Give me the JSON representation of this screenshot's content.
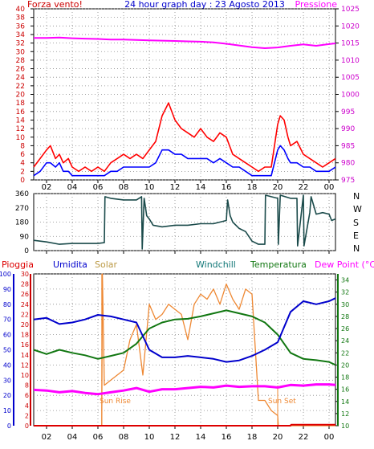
{
  "header": {
    "left_title": "Forza vento!",
    "center_title": "24 hour graph day : 23 Agosto 2013",
    "right_title": "Pressione"
  },
  "time_ticks": [
    "02",
    "04",
    "06",
    "08",
    "10",
    "12",
    "14",
    "16",
    "18",
    "20",
    "22",
    "00"
  ],
  "wind_panel": {
    "left_ticks": [
      "0",
      "2",
      "4",
      "6",
      "8",
      "10",
      "12",
      "14",
      "16",
      "18",
      "20",
      "22",
      "24",
      "26",
      "28",
      "30",
      "32",
      "34",
      "36",
      "38",
      "40"
    ],
    "right_ticks": [
      "975",
      "980",
      "985",
      "990",
      "995",
      "1000",
      "1005",
      "1010",
      "1015",
      "1020",
      "1025"
    ]
  },
  "direction_panel": {
    "left_ticks": [
      "0",
      "90",
      "180",
      "270",
      "360"
    ],
    "compass": [
      "N",
      "W",
      "S",
      "E",
      "N"
    ]
  },
  "bottom_panel": {
    "legend": [
      "Pioggia",
      "Umidita",
      "Solar",
      "Windchill",
      "Temperatura",
      "Dew Point (°C)"
    ],
    "humidity_ticks": [
      "0",
      "10",
      "20",
      "30",
      "40",
      "50",
      "60",
      "70",
      "80",
      "90",
      "100"
    ],
    "rain_ticks": [
      "0",
      "2",
      "4",
      "6",
      "8",
      "10",
      "12",
      "14",
      "16",
      "18",
      "20",
      "22",
      "24",
      "26",
      "28",
      "30"
    ],
    "temp_ticks": [
      "10",
      "12",
      "14",
      "16",
      "18",
      "20",
      "22",
      "24",
      "26",
      "28",
      "30",
      "32",
      "34"
    ],
    "annotations": {
      "sunrise": "Sun Rise",
      "sunset": "Sun Set"
    }
  },
  "colors": {
    "wind_gust": "#ff0000",
    "wind_avg": "#0000ff",
    "pressure": "#ff00ff",
    "direction": "#1a4a4a",
    "humidity": "#0000cc",
    "solar": "#ee8833",
    "temperature": "#117711",
    "dewpoint": "#ff00ff",
    "rain": "#dd0000",
    "hum_axis": "#0000cc",
    "rain_axis": "#cc0000",
    "temp_axis": "#117711"
  },
  "chart_data": [
    {
      "type": "line",
      "x_unit": "hour",
      "xlim": [
        1,
        24.5
      ],
      "series": [
        {
          "name": "gust",
          "axis": "left",
          "x": [
            1,
            1.5,
            2,
            2.3,
            2.7,
            3,
            3.3,
            3.7,
            4,
            4.5,
            5,
            5.5,
            6,
            6.5,
            7,
            7.5,
            8,
            8.5,
            9,
            9.5,
            10,
            10.5,
            11,
            11.5,
            12,
            12.5,
            13,
            13.5,
            14,
            14.5,
            15,
            15.5,
            16,
            16.5,
            17,
            17.5,
            18,
            18.5,
            19,
            19.5,
            20,
            20.2,
            20.5,
            20.8,
            21,
            21.5,
            22,
            22.5,
            23,
            23.5,
            24,
            24.5
          ],
          "values": [
            3,
            5,
            7,
            8,
            5,
            6,
            4,
            5,
            3,
            2,
            3,
            2,
            3,
            2,
            4,
            5,
            6,
            5,
            6,
            5,
            7,
            9,
            15,
            18,
            14,
            12,
            11,
            10,
            12,
            10,
            9,
            11,
            10,
            6,
            5,
            4,
            3,
            2,
            3,
            3,
            13,
            15,
            14,
            10,
            8,
            9,
            6,
            5,
            4,
            3,
            4,
            5
          ]
        },
        {
          "name": "average",
          "axis": "left",
          "x": [
            1,
            1.5,
            2,
            2.3,
            2.7,
            3,
            3.3,
            3.7,
            4,
            4.5,
            5,
            5.5,
            6,
            6.5,
            7,
            7.5,
            8,
            8.5,
            9,
            9.5,
            10,
            10.5,
            11,
            11.5,
            12,
            12.5,
            13,
            13.5,
            14,
            14.5,
            15,
            15.5,
            16,
            16.5,
            17,
            17.5,
            18,
            18.5,
            19,
            19.5,
            20,
            20.2,
            20.5,
            20.8,
            21,
            21.5,
            22,
            22.5,
            23,
            23.5,
            24,
            24.5
          ],
          "values": [
            1,
            2,
            4,
            4,
            3,
            4,
            2,
            2,
            1,
            1,
            1,
            1,
            1,
            1,
            2,
            2,
            3,
            3,
            3,
            3,
            3,
            4,
            7,
            7,
            6,
            6,
            5,
            5,
            5,
            5,
            4,
            5,
            4,
            3,
            3,
            2,
            1,
            1,
            1,
            1,
            7,
            8,
            7,
            5,
            4,
            4,
            3,
            3,
            2,
            2,
            2,
            3
          ]
        },
        {
          "name": "pressure",
          "axis": "right",
          "x": [
            1,
            2,
            3,
            4,
            5,
            6,
            7,
            8,
            9,
            10,
            11,
            12,
            13,
            14,
            15,
            16,
            17,
            18,
            19,
            20,
            21,
            22,
            23,
            24,
            24.5
          ],
          "values": [
            1016.5,
            1016.5,
            1016.6,
            1016.4,
            1016.3,
            1016.2,
            1016.0,
            1016.0,
            1015.9,
            1015.8,
            1015.7,
            1015.6,
            1015.5,
            1015.4,
            1015.2,
            1014.8,
            1014.3,
            1013.8,
            1013.5,
            1013.7,
            1014.2,
            1014.6,
            1014.2,
            1014.7,
            1014.9
          ]
        }
      ],
      "ylim_left": [
        0,
        40
      ],
      "ylim_right": [
        975,
        1025
      ]
    },
    {
      "type": "line",
      "x_unit": "hour",
      "xlim": [
        1,
        24.5
      ],
      "series": [
        {
          "name": "direction",
          "x": [
            1,
            2,
            3,
            4,
            5,
            6,
            6.5,
            6.55,
            7,
            8,
            9,
            9.4,
            9.45,
            9.6,
            9.8,
            10,
            10.3,
            11,
            12,
            13,
            14,
            15,
            16,
            16.1,
            16.3,
            16.5,
            17,
            17.5,
            18,
            18.5,
            19,
            19.05,
            19.5,
            20,
            20.05,
            20.2,
            21,
            21.5,
            21.55,
            22,
            22.05,
            22.5,
            22.6,
            23,
            23.5,
            24,
            24.2,
            24.5
          ],
          "values": [
            65,
            55,
            40,
            45,
            45,
            45,
            50,
            340,
            330,
            320,
            320,
            340,
            10,
            330,
            220,
            200,
            160,
            150,
            160,
            160,
            170,
            170,
            190,
            320,
            220,
            180,
            140,
            120,
            60,
            40,
            40,
            350,
            340,
            330,
            40,
            350,
            330,
            330,
            30,
            350,
            30,
            240,
            340,
            230,
            240,
            230,
            190,
            200
          ]
        }
      ],
      "ylim": [
        0,
        360
      ]
    },
    {
      "type": "line",
      "x_unit": "hour",
      "xlim": [
        1,
        24.5
      ],
      "series": [
        {
          "name": "Umidita",
          "axis": "humidity",
          "x": [
            1,
            2,
            3,
            4,
            5,
            6,
            7,
            8,
            9,
            10,
            11,
            12,
            13,
            14,
            15,
            16,
            17,
            18,
            19,
            20,
            21,
            22,
            23,
            24,
            24.5
          ],
          "values": [
            70,
            71,
            67,
            68,
            70,
            73,
            72,
            70,
            68,
            50,
            45,
            45,
            46,
            45,
            44,
            42,
            43,
            46,
            50,
            55,
            75,
            82,
            80,
            82,
            84
          ]
        },
        {
          "name": "Temperatura",
          "axis": "temp",
          "x": [
            1,
            2,
            3,
            4,
            5,
            6,
            7,
            8,
            9,
            10,
            11,
            12,
            13,
            14,
            15,
            16,
            17,
            18,
            19,
            20,
            21,
            22,
            23,
            24,
            24.5
          ],
          "values": [
            22.5,
            21.8,
            22.5,
            22.0,
            21.6,
            21.0,
            21.5,
            22.0,
            23.5,
            26.0,
            27.0,
            27.5,
            27.6,
            28.0,
            28.5,
            29.0,
            28.5,
            28.0,
            27.0,
            25.0,
            22.0,
            21.0,
            20.8,
            20.5,
            20.0
          ]
        },
        {
          "name": "Dew Point (°C)",
          "axis": "temp",
          "x": [
            1,
            2,
            3,
            4,
            5,
            6,
            7,
            8,
            9,
            10,
            11,
            12,
            13,
            14,
            15,
            16,
            17,
            18,
            19,
            20,
            21,
            22,
            23,
            24,
            24.5
          ],
          "values": [
            15.9,
            15.8,
            15.5,
            15.7,
            15.4,
            15.2,
            15.5,
            15.8,
            16.2,
            15.6,
            16.0,
            16.0,
            16.2,
            16.4,
            16.3,
            16.6,
            16.4,
            16.5,
            16.5,
            16.3,
            16.7,
            16.6,
            16.8,
            16.8,
            16.7
          ]
        },
        {
          "name": "Solar",
          "axis": "rain",
          "x": [
            1,
            5,
            6.3,
            6.35,
            6.5,
            7,
            7.5,
            8,
            8.5,
            9,
            9.5,
            10,
            10.5,
            11,
            11.5,
            12,
            12.5,
            13,
            13.5,
            14,
            14.5,
            15,
            15.5,
            16,
            16.5,
            17,
            17.5,
            18,
            18.5,
            19,
            19.5,
            20,
            20.05,
            24.5
          ],
          "values": [
            0,
            0,
            0,
            30,
            8,
            9,
            10,
            11,
            17,
            20,
            10,
            24,
            21,
            22,
            24,
            23,
            22,
            17,
            24,
            26,
            25,
            27,
            24,
            28,
            25,
            23,
            27,
            26,
            5,
            5,
            3,
            2,
            0,
            0
          ]
        },
        {
          "name": "Pioggia",
          "axis": "rain",
          "x": [
            1,
            21,
            21.05,
            24.5
          ],
          "values": [
            0,
            0,
            0.2,
            0.2
          ]
        }
      ],
      "ylim_humidity": [
        0,
        100
      ],
      "ylim_rain": [
        0,
        30
      ],
      "ylim_temp": [
        10,
        35
      ]
    }
  ]
}
